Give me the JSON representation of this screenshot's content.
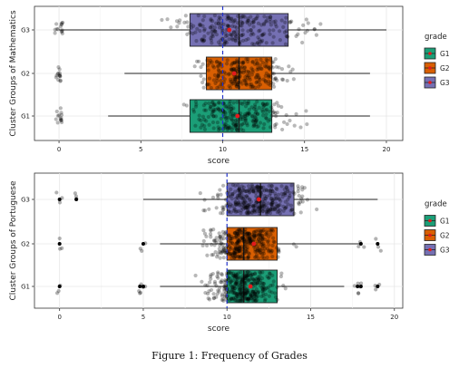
{
  "caption": "Figure 1: Frequency of Grades",
  "legend": {
    "title": "grade",
    "items": [
      {
        "label": "G1",
        "color": "#1b9e77"
      },
      {
        "label": "G2",
        "color": "#d95f02"
      },
      {
        "label": "G3",
        "color": "#7570b3"
      }
    ]
  },
  "chart_data": [
    {
      "type": "box",
      "title": "",
      "xlabel": "score",
      "ylabel": "Cluster Groups of Mathematics",
      "xlim": [
        -1.5,
        21
      ],
      "x_ticks": [
        0,
        5,
        10,
        15,
        20
      ],
      "x_tick_labels": [
        "0",
        "5",
        "10",
        "15",
        "20"
      ],
      "categories": [
        "G1",
        "G2",
        "G3"
      ],
      "reference_line": 10,
      "series": [
        {
          "name": "G1",
          "min": 3,
          "q1": 8,
          "median": 11,
          "q3": 13,
          "max": 19,
          "mean": 10.9,
          "outliers_zero": true
        },
        {
          "name": "G2",
          "min": 4,
          "q1": 9,
          "median": 11,
          "q3": 13,
          "max": 19,
          "mean": 10.7,
          "outliers_zero": true
        },
        {
          "name": "G3",
          "min": 0,
          "q1": 8,
          "median": 11,
          "q3": 14,
          "max": 20,
          "mean": 10.4,
          "outliers_zero": true
        }
      ]
    },
    {
      "type": "box",
      "title": "",
      "xlabel": "score",
      "ylabel": "Cluster Groups of Portuguese",
      "xlim": [
        -1.5,
        20.5
      ],
      "x_ticks": [
        0,
        5,
        10,
        15,
        20
      ],
      "x_tick_labels": [
        "0",
        "5",
        "10",
        "15",
        "20"
      ],
      "categories": [
        "G1",
        "G2",
        "G3"
      ],
      "reference_line": 10,
      "series": [
        {
          "name": "G1",
          "min": 6,
          "q1": 10,
          "median": 11,
          "q3": 13,
          "max": 17,
          "mean": 11.4,
          "outliers": [
            0,
            4.8,
            5,
            17.8,
            18,
            19
          ]
        },
        {
          "name": "G2",
          "min": 6,
          "q1": 10,
          "median": 11,
          "q3": 13,
          "max": 18,
          "mean": 11.6,
          "outliers": [
            0,
            5,
            18,
            19
          ]
        },
        {
          "name": "G3",
          "min": 5,
          "q1": 10,
          "median": 12,
          "q3": 14,
          "max": 19,
          "mean": 11.9,
          "outliers": [
            0,
            1
          ]
        }
      ]
    }
  ]
}
